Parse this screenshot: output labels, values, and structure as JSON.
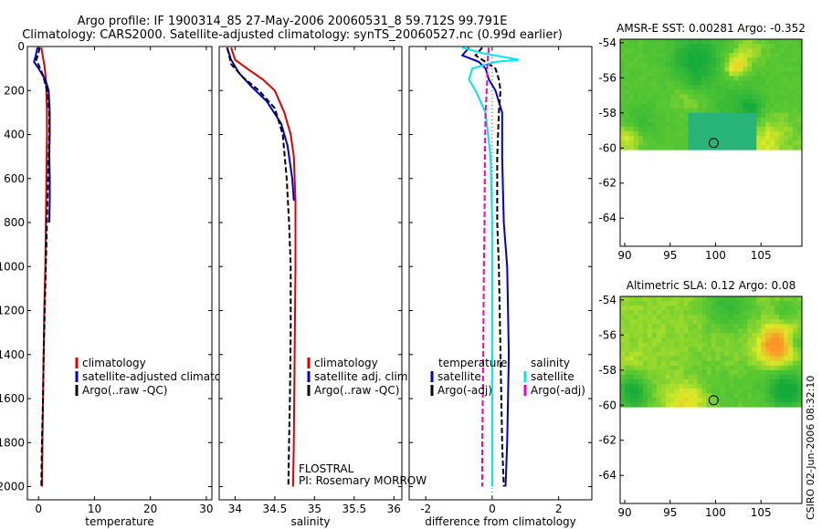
{
  "title_line1": "Argo profile: IF 1900314_85 27-May-2006 20060531_8 59.712S 99.791E",
  "title_line2": "Climatology: CARS2000. Satellite-adjusted climatology: synTS_20060527.nc (0.99d earlier)",
  "side_text": "CSIRO 02-Jun-2006 08:32:10",
  "float_info": {
    "line1": "FLOSTRAL",
    "line2": "PI: Rosemary MORROW"
  },
  "colors": {
    "red": "#dd0000",
    "blue": "#0000cc",
    "black": "#000000",
    "cyan": "#00e5ee",
    "magenta": "#ee00cc"
  },
  "chart_data": [
    {
      "id": "temperature",
      "type": "line",
      "xlabel": "temperature",
      "xlim": [
        -2,
        31
      ],
      "ylim": [
        2060,
        0
      ],
      "xticks": [
        0,
        10,
        20,
        30
      ],
      "yticks": [
        0,
        200,
        400,
        600,
        800,
        1000,
        1200,
        1400,
        1600,
        1800,
        2000
      ],
      "legend": [
        "climatology",
        "satellite-adjusted climatology",
        "Argo(..raw -QC)"
      ],
      "series": [
        {
          "name": "climatology",
          "color": "red",
          "dash": "",
          "width": 2,
          "points": [
            [
              0.5,
              5
            ],
            [
              0.6,
              20
            ],
            [
              0.8,
              50
            ],
            [
              1.0,
              80
            ],
            [
              1.2,
              120
            ],
            [
              1.4,
              200
            ],
            [
              1.5,
              300
            ],
            [
              1.5,
              400
            ],
            [
              1.4,
              600
            ],
            [
              1.3,
              800
            ],
            [
              1.2,
              1000
            ],
            [
              1.0,
              1200
            ],
            [
              0.9,
              1400
            ],
            [
              0.8,
              1600
            ],
            [
              0.7,
              1800
            ],
            [
              0.6,
              2000
            ]
          ]
        },
        {
          "name": "satellite-adjusted climatology",
          "color": "blue",
          "dash": "",
          "width": 2,
          "points": [
            [
              -0.2,
              5
            ],
            [
              -0.5,
              40
            ],
            [
              -0.8,
              70
            ],
            [
              0.0,
              100
            ],
            [
              1.2,
              150
            ],
            [
              1.8,
              200
            ],
            [
              2.0,
              300
            ],
            [
              2.0,
              400
            ],
            [
              1.9,
              500
            ],
            [
              2.0,
              600
            ],
            [
              2.0,
              700
            ],
            [
              1.9,
              800
            ]
          ]
        },
        {
          "name": "Argo(..raw -QC)",
          "color": "black",
          "dash": "6,3",
          "width": 2,
          "points": [
            [
              0.2,
              5
            ],
            [
              0.0,
              30
            ],
            [
              -0.4,
              60
            ],
            [
              0.1,
              90
            ],
            [
              0.8,
              130
            ],
            [
              1.5,
              200
            ],
            [
              1.9,
              300
            ],
            [
              1.9,
              400
            ],
            [
              1.7,
              600
            ],
            [
              1.5,
              800
            ],
            [
              1.3,
              1000
            ],
            [
              1.1,
              1200
            ],
            [
              0.9,
              1400
            ],
            [
              0.8,
              1600
            ],
            [
              0.6,
              1800
            ],
            [
              0.5,
              2000
            ]
          ]
        }
      ]
    },
    {
      "id": "salinity",
      "type": "line",
      "xlabel": "salinity",
      "xlim": [
        33.8,
        36.1
      ],
      "ylim": [
        2060,
        0
      ],
      "xticks": [
        34,
        34.5,
        35,
        35.5,
        36
      ],
      "xticklabels": [
        "34",
        "34.5",
        "35",
        "35.5",
        "36"
      ],
      "legend": [
        "climatology",
        "satellite adj. clim.",
        "Argo(..raw -QC)"
      ],
      "series": [
        {
          "name": "climatology",
          "color": "red",
          "dash": "",
          "width": 2,
          "points": [
            [
              33.95,
              5
            ],
            [
              34.0,
              60
            ],
            [
              34.15,
              100
            ],
            [
              34.35,
              150
            ],
            [
              34.5,
              200
            ],
            [
              34.62,
              300
            ],
            [
              34.7,
              400
            ],
            [
              34.74,
              500
            ],
            [
              34.76,
              700
            ],
            [
              34.76,
              1000
            ],
            [
              34.75,
              1400
            ],
            [
              34.74,
              1800
            ],
            [
              34.73,
              2000
            ]
          ]
        },
        {
          "name": "satellite adj. clim.",
          "color": "blue",
          "dash": "",
          "width": 2,
          "points": [
            [
              33.9,
              5
            ],
            [
              33.95,
              60
            ],
            [
              34.05,
              120
            ],
            [
              34.2,
              180
            ],
            [
              34.4,
              250
            ],
            [
              34.58,
              350
            ],
            [
              34.66,
              450
            ],
            [
              34.72,
              600
            ],
            [
              34.74,
              700
            ]
          ]
        },
        {
          "name": "Argo(..raw -QC)",
          "color": "black",
          "dash": "6,3",
          "width": 2,
          "points": [
            [
              33.9,
              5
            ],
            [
              33.92,
              30
            ],
            [
              33.95,
              80
            ],
            [
              34.1,
              140
            ],
            [
              34.3,
              200
            ],
            [
              34.5,
              280
            ],
            [
              34.6,
              400
            ],
            [
              34.65,
              600
            ],
            [
              34.68,
              800
            ],
            [
              34.7,
              1000
            ],
            [
              34.7,
              1300
            ],
            [
              34.69,
              1600
            ],
            [
              34.68,
              1800
            ],
            [
              34.67,
              2000
            ]
          ]
        }
      ]
    },
    {
      "id": "difference",
      "type": "line",
      "xlabel": "difference from climatology",
      "xlim": [
        -2.5,
        3
      ],
      "ylim": [
        2060,
        0
      ],
      "xticks": [
        -2,
        0,
        2
      ],
      "legend_temperature": {
        "title": "temperature",
        "items": [
          "satellite",
          "Argo(-adj)"
        ]
      },
      "legend_salinity": {
        "title": "salinity",
        "items": [
          "satellite",
          "Argo(-adj)"
        ]
      },
      "series": [
        {
          "name": "temperature satellite",
          "color": "blue",
          "dash": "",
          "width": 2,
          "points": [
            [
              -0.7,
              5
            ],
            [
              -0.9,
              40
            ],
            [
              -0.4,
              70
            ],
            [
              -0.2,
              100
            ],
            [
              -0.1,
              150
            ],
            [
              0.1,
              200
            ],
            [
              0.3,
              300
            ],
            [
              0.3,
              500
            ],
            [
              0.35,
              800
            ],
            [
              0.45,
              1000
            ],
            [
              0.5,
              1400
            ],
            [
              0.45,
              1800
            ],
            [
              0.4,
              2000
            ]
          ]
        },
        {
          "name": "temperature Argo(-adj)",
          "color": "black",
          "dash": "6,3",
          "width": 2,
          "points": [
            [
              -0.3,
              5
            ],
            [
              -0.5,
              40
            ],
            [
              -0.2,
              70
            ],
            [
              0.1,
              100
            ],
            [
              0.2,
              150
            ],
            [
              0.25,
              200
            ],
            [
              0.2,
              300
            ],
            [
              0.15,
              500
            ],
            [
              0.15,
              800
            ],
            [
              0.2,
              1000
            ],
            [
              0.25,
              1400
            ],
            [
              0.3,
              1800
            ],
            [
              0.35,
              2000
            ]
          ]
        },
        {
          "name": "salinity satellite",
          "color": "cyan",
          "dash": "",
          "width": 2,
          "points": [
            [
              -0.9,
              5
            ],
            [
              -0.3,
              30
            ],
            [
              0.8,
              60
            ],
            [
              0.1,
              70
            ],
            [
              -0.6,
              100
            ],
            [
              -0.7,
              150
            ],
            [
              -0.5,
              200
            ],
            [
              -0.2,
              300
            ],
            [
              -0.05,
              500
            ],
            [
              0.0,
              800
            ],
            [
              0.0,
              1000
            ],
            [
              0.0,
              1400
            ],
            [
              0.0,
              1800
            ],
            [
              0.0,
              2000
            ]
          ]
        },
        {
          "name": "salinity Argo(-adj)",
          "color": "magenta",
          "dash": "6,3",
          "width": 2,
          "points": [
            [
              -0.1,
              5
            ],
            [
              -0.15,
              80
            ],
            [
              -0.15,
              150
            ],
            [
              -0.2,
              300
            ],
            [
              -0.22,
              500
            ],
            [
              -0.23,
              800
            ],
            [
              -0.25,
              1000
            ],
            [
              -0.27,
              1400
            ],
            [
              -0.3,
              1800
            ],
            [
              -0.3,
              2000
            ]
          ]
        }
      ]
    },
    {
      "id": "amsre_sst",
      "type": "heatmap",
      "title": "AMSR-E SST: 0.00281 Argo: -0.352",
      "xlim": [
        89.5,
        109.5
      ],
      "ylim": [
        -65.6,
        -53.8
      ],
      "xticks": [
        90,
        95,
        100,
        105
      ],
      "yticks": [
        -54,
        -56,
        -58,
        -60,
        -62,
        -64
      ],
      "data_lat_range": [
        -60.1,
        -53.8
      ],
      "argo_position": {
        "lon": 99.791,
        "lat": -59.712
      }
    },
    {
      "id": "altimetric_sla",
      "type": "heatmap",
      "title": "Altimetric SLA: 0.12 Argo: 0.08",
      "xlim": [
        89.5,
        109.5
      ],
      "ylim": [
        -65.6,
        -53.8
      ],
      "xticks": [
        90,
        95,
        100,
        105
      ],
      "yticks": [
        -54,
        -56,
        -58,
        -60,
        -62,
        -64
      ],
      "data_lat_range": [
        -60.1,
        -53.8
      ],
      "argo_position": {
        "lon": 99.791,
        "lat": -59.712
      }
    }
  ]
}
